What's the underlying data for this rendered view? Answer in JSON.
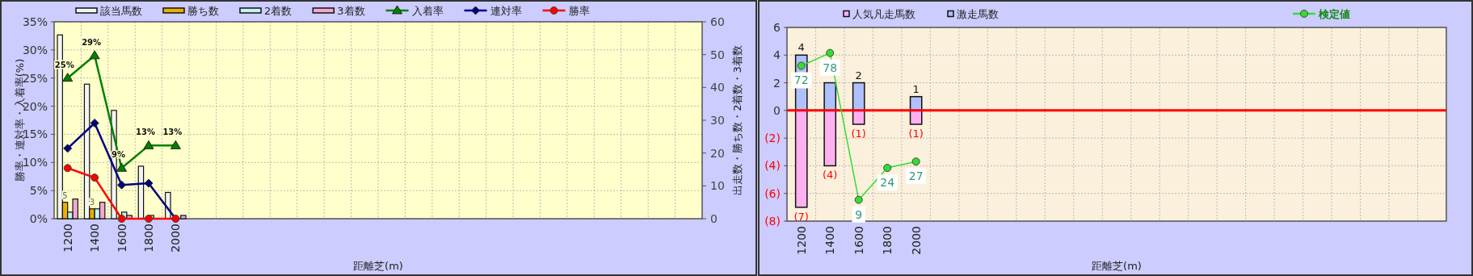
{
  "chart_data": [
    {
      "type": "bar",
      "categories": [
        "1200",
        "1400",
        "1600",
        "1800",
        "2000",
        null,
        null,
        null,
        null,
        null,
        null,
        null,
        null,
        null,
        null,
        null,
        null,
        null,
        null,
        null,
        null,
        null,
        null,
        null
      ],
      "xlabel": "距離芝(m)",
      "ylabel": "勝率・連対率・入着率(%)",
      "y2label": "出走数・勝ち数・2着数・3着数",
      "ylim": [
        0,
        35
      ],
      "yticks": [
        {
          "value": 0,
          "label": "0%"
        },
        {
          "value": 5,
          "label": "5%"
        },
        {
          "value": 10,
          "label": "10%"
        },
        {
          "value": 15,
          "label": "15%"
        },
        {
          "value": 20,
          "label": "20%"
        },
        {
          "value": 25,
          "label": "25%"
        },
        {
          "value": 30,
          "label": "30%"
        },
        {
          "value": 35,
          "label": "35%"
        }
      ],
      "y2lim": [
        0,
        60
      ],
      "y2ticks": [
        0,
        10,
        20,
        30,
        40,
        50,
        60
      ],
      "grid": true,
      "legend": "top",
      "series": [
        {
          "name": "該当馬数",
          "type": "bar",
          "axis": "y2",
          "color": "#f4f4f4",
          "values": [
            56,
            41,
            33,
            16,
            8,
            null,
            null,
            null,
            null,
            null,
            null,
            null,
            null,
            null,
            null,
            null,
            null,
            null,
            null,
            null,
            null,
            null,
            null,
            null
          ]
        },
        {
          "name": "勝ち数",
          "type": "bar",
          "axis": "y2",
          "color": "#e8b000",
          "values": [
            5,
            3,
            0,
            0,
            0,
            null,
            null,
            null,
            null,
            null,
            null,
            null,
            null,
            null,
            null,
            null,
            null,
            null,
            null,
            null,
            null,
            null,
            null,
            null
          ],
          "value_labels": [
            "5",
            "3",
            null,
            null,
            null,
            null,
            null,
            null,
            null,
            null,
            null,
            null,
            null,
            null,
            null,
            null,
            null,
            null,
            null,
            null,
            null,
            null,
            null,
            null
          ]
        },
        {
          "name": "2着数",
          "type": "bar",
          "axis": "y2",
          "color": "#c4f4f4",
          "values": [
            2,
            3,
            2,
            1,
            0,
            null,
            null,
            null,
            null,
            null,
            null,
            null,
            null,
            null,
            null,
            null,
            null,
            null,
            null,
            null,
            null,
            null,
            null,
            null
          ]
        },
        {
          "name": "3着数",
          "type": "bar",
          "axis": "y2",
          "color": "#f4a8d0",
          "values": [
            6,
            5,
            1,
            0,
            1,
            null,
            null,
            null,
            null,
            null,
            null,
            null,
            null,
            null,
            null,
            null,
            null,
            null,
            null,
            null,
            null,
            null,
            null,
            null
          ]
        },
        {
          "name": "入着率",
          "type": "line",
          "color": "#008000",
          "marker": "triangle",
          "values": [
            25,
            29,
            9,
            13,
            13,
            null,
            null,
            null,
            null,
            null,
            null,
            null,
            null,
            null,
            null,
            null,
            null,
            null,
            null,
            null,
            null,
            null,
            null,
            null
          ],
          "value_labels": [
            "25%",
            "29%",
            "9%",
            "13%",
            "13%",
            null,
            null,
            null,
            null,
            null,
            null,
            null,
            null,
            null,
            null,
            null,
            null,
            null,
            null,
            null,
            null,
            null,
            null,
            null
          ]
        },
        {
          "name": "連対率",
          "type": "line",
          "color": "#000080",
          "marker": "diamond",
          "values": [
            12.5,
            17,
            6,
            6.3,
            0,
            null,
            null,
            null,
            null,
            null,
            null,
            null,
            null,
            null,
            null,
            null,
            null,
            null,
            null,
            null,
            null,
            null,
            null,
            null
          ]
        },
        {
          "name": "勝率",
          "type": "line",
          "color": "#ff0000",
          "marker": "circle",
          "values": [
            9,
            7.3,
            0,
            0,
            0,
            null,
            null,
            null,
            null,
            null,
            null,
            null,
            null,
            null,
            null,
            null,
            null,
            null,
            null,
            null,
            null,
            null,
            null,
            null
          ]
        }
      ]
    },
    {
      "type": "bar",
      "stacked": true,
      "categories": [
        "1200",
        "1400",
        "1600",
        "1800",
        "2000",
        null,
        null,
        null,
        null,
        null,
        null,
        null,
        null,
        null,
        null,
        null,
        null,
        null,
        null,
        null,
        null,
        null,
        null
      ],
      "xlabel": "距離芝(m)",
      "ylim": [
        -8,
        6
      ],
      "yticks": [
        6,
        4,
        2,
        0,
        {
          "value": -2,
          "label": "(2)"
        },
        {
          "value": -4,
          "label": "(4)"
        },
        {
          "value": -6,
          "label": "(6)"
        },
        {
          "value": -8,
          "label": "(8)"
        }
      ],
      "y2lim": [
        -1,
        90
      ],
      "grid": true,
      "legend": "top",
      "ref_lines": [
        {
          "axis": "y",
          "value": 0,
          "color": "#ff0000"
        }
      ],
      "series": [
        {
          "name": "人気凡走馬数",
          "type": "bar",
          "color": "#ffb0f0",
          "values": [
            -7,
            -4,
            -1,
            0,
            -1,
            null,
            null,
            null,
            null,
            null,
            null,
            null,
            null,
            null,
            null,
            null,
            null,
            null,
            null,
            null,
            null,
            null,
            null
          ],
          "value_labels": [
            "(7)",
            "(4)",
            "(1)",
            null,
            "(1)",
            null,
            null,
            null,
            null,
            null,
            null,
            null,
            null,
            null,
            null,
            null,
            null,
            null,
            null,
            null,
            null,
            null,
            null
          ]
        },
        {
          "name": "激走馬数",
          "type": "bar",
          "color": "#b0c0ff",
          "values": [
            4,
            2,
            2,
            0,
            1,
            null,
            null,
            null,
            null,
            null,
            null,
            null,
            null,
            null,
            null,
            null,
            null,
            null,
            null,
            null,
            null,
            null,
            null
          ],
          "value_labels": [
            "4",
            null,
            "2",
            null,
            "1",
            null,
            null,
            null,
            null,
            null,
            null,
            null,
            null,
            null,
            null,
            null,
            null,
            null,
            null,
            null,
            null,
            null,
            null
          ]
        },
        {
          "name": "検定値",
          "type": "line",
          "axis": "y2",
          "color": "#33dd33",
          "marker": "circle",
          "values": [
            72,
            78,
            9,
            24,
            27,
            null,
            null,
            null,
            null,
            null,
            null,
            null,
            null,
            null,
            null,
            null,
            null,
            null,
            null,
            null,
            null,
            null,
            null
          ],
          "value_labels": [
            "72",
            "78",
            "9",
            "24",
            "27",
            null,
            null,
            null,
            null,
            null,
            null,
            null,
            null,
            null,
            null,
            null,
            null,
            null,
            null,
            null,
            null,
            null,
            null
          ]
        }
      ]
    }
  ]
}
